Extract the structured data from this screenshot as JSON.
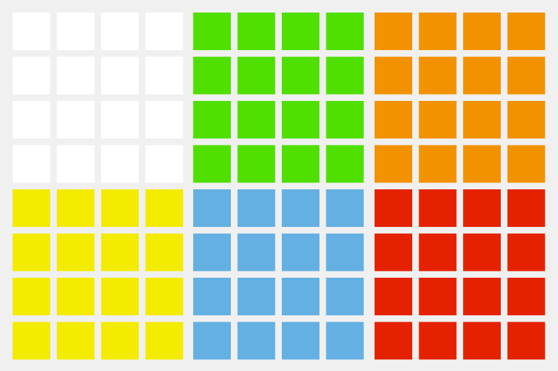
{
  "faces": [
    {
      "color": "#ffffff"
    },
    {
      "color": "#50e000"
    },
    {
      "color": "#f39200"
    },
    {
      "color": "#f4ec00"
    },
    {
      "color": "#64b0e2"
    },
    {
      "color": "#e52200"
    }
  ]
}
